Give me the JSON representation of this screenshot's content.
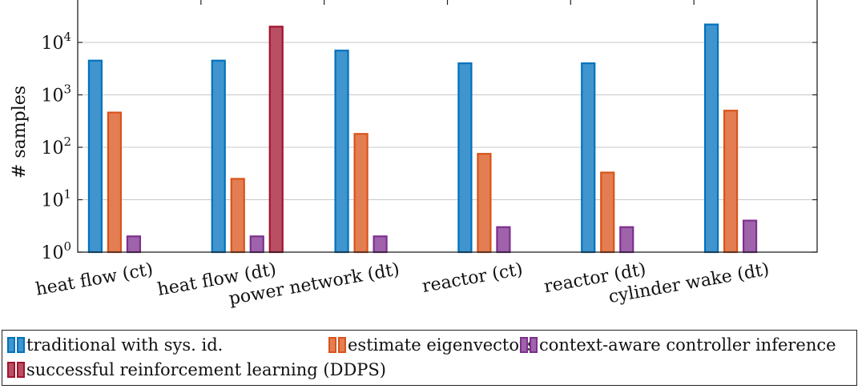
{
  "chart_data": {
    "type": "bar",
    "yscale": "log",
    "ylabel": "# samples",
    "ylim": [
      1,
      100000
    ],
    "yticks": [
      {
        "value": 1,
        "base": "10",
        "exp": "0"
      },
      {
        "value": 10,
        "base": "10",
        "exp": "1"
      },
      {
        "value": 100,
        "base": "10",
        "exp": "2"
      },
      {
        "value": 1000,
        "base": "10",
        "exp": "3"
      },
      {
        "value": 10000,
        "base": "10",
        "exp": "4"
      }
    ],
    "grid": "horizontal",
    "legend_position": "bottom",
    "categories": [
      "heat flow (ct)",
      "heat flow (dt)",
      "power network (dt)",
      "reactor (ct)",
      "reactor (dt)",
      "cylinder wake (dt)"
    ],
    "series": [
      {
        "name": "traditional with sys. id.",
        "color": "#0072bd",
        "values": [
          4500,
          4500,
          7000,
          4000,
          4000,
          22000
        ]
      },
      {
        "name": "estimate eigenvectors",
        "color": "#d95319",
        "values": [
          460,
          25,
          180,
          75,
          33,
          500
        ]
      },
      {
        "name": "context-aware controller inference",
        "color": "#7e2f8e",
        "values": [
          2,
          2,
          2,
          3,
          3,
          4
        ]
      },
      {
        "name": "successful reinforcement learning (DDPS)",
        "color": "#a2142f",
        "values": [
          null,
          20000,
          null,
          null,
          null,
          null
        ]
      }
    ]
  }
}
